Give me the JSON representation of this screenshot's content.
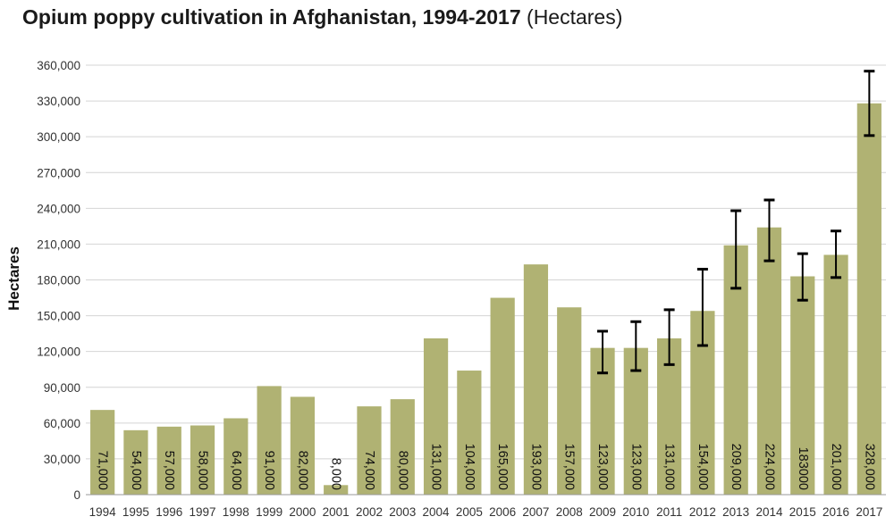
{
  "chart_data": {
    "type": "bar",
    "title": "Opium poppy cultivation in Afghanistan, 1994-2017",
    "subtitle": "(Hectares)",
    "xlabel": "",
    "ylabel": "Hectares",
    "ylim": [
      0,
      360000
    ],
    "yticks": [
      "0",
      "30,000",
      "60,000",
      "90,000",
      "120,000",
      "150,000",
      "180,000",
      "210,000",
      "240,000",
      "270,000",
      "300,000",
      "330,000",
      "360,000"
    ],
    "grid": true,
    "legend": "none",
    "categories": [
      "1994",
      "1995",
      "1996",
      "1997",
      "1998",
      "1999",
      "2000",
      "2001",
      "2002",
      "2003",
      "2004",
      "2005",
      "2006",
      "2007",
      "2008",
      "2009",
      "2010",
      "2011",
      "2012",
      "2013",
      "2014",
      "2015",
      "2016",
      "2017"
    ],
    "values": [
      71000,
      54000,
      57000,
      58000,
      64000,
      91000,
      82000,
      8000,
      74000,
      80000,
      131000,
      104000,
      165000,
      193000,
      157000,
      123000,
      123000,
      131000,
      154000,
      209000,
      224000,
      183000,
      201000,
      328000
    ],
    "value_labels": [
      "71,000",
      "54,000",
      "57,000",
      "58,000",
      "64,000",
      "91,000",
      "82,000",
      "8,000",
      "74,000",
      "80,000",
      "131,000",
      "104,000",
      "165,000",
      "193,000",
      "157,000",
      "123,000",
      "123,000",
      "131,000",
      "154,000",
      "209,000",
      "224,000",
      "183000",
      "201,000",
      "328,000"
    ],
    "error_bars": [
      null,
      null,
      null,
      null,
      null,
      null,
      null,
      null,
      null,
      null,
      null,
      null,
      null,
      null,
      null,
      [
        102000,
        137000
      ],
      [
        104000,
        145000
      ],
      [
        109000,
        155000
      ],
      [
        125000,
        189000
      ],
      [
        173000,
        238000
      ],
      [
        196000,
        247000
      ],
      [
        163000,
        202000
      ],
      [
        182000,
        221000
      ],
      [
        301000,
        355000
      ]
    ],
    "bar_color": "#b0b273",
    "grid_color": "#d4d4d4",
    "error_color": "#000000"
  }
}
